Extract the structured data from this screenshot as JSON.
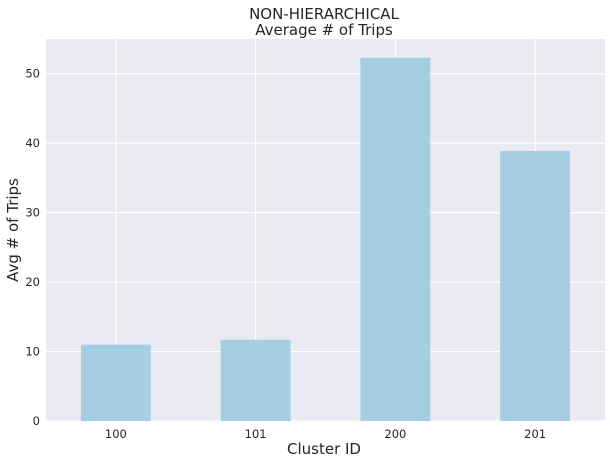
{
  "chart_data": {
    "type": "bar",
    "title": "NON-HIERARCHICAL",
    "subtitle": "Average # of Trips",
    "xlabel": "Cluster ID",
    "ylabel": "Avg # of Trips",
    "categories": [
      "100",
      "101",
      "200",
      "201"
    ],
    "values": [
      11.0,
      11.7,
      52.3,
      38.9
    ],
    "ylim": [
      0,
      55
    ],
    "yticks": [
      0,
      10,
      20,
      30,
      40,
      50
    ],
    "grid": true,
    "colors": {
      "bar": "#a6cee3",
      "plot_background": "#eaeaf2",
      "grid": "#ffffff"
    }
  }
}
